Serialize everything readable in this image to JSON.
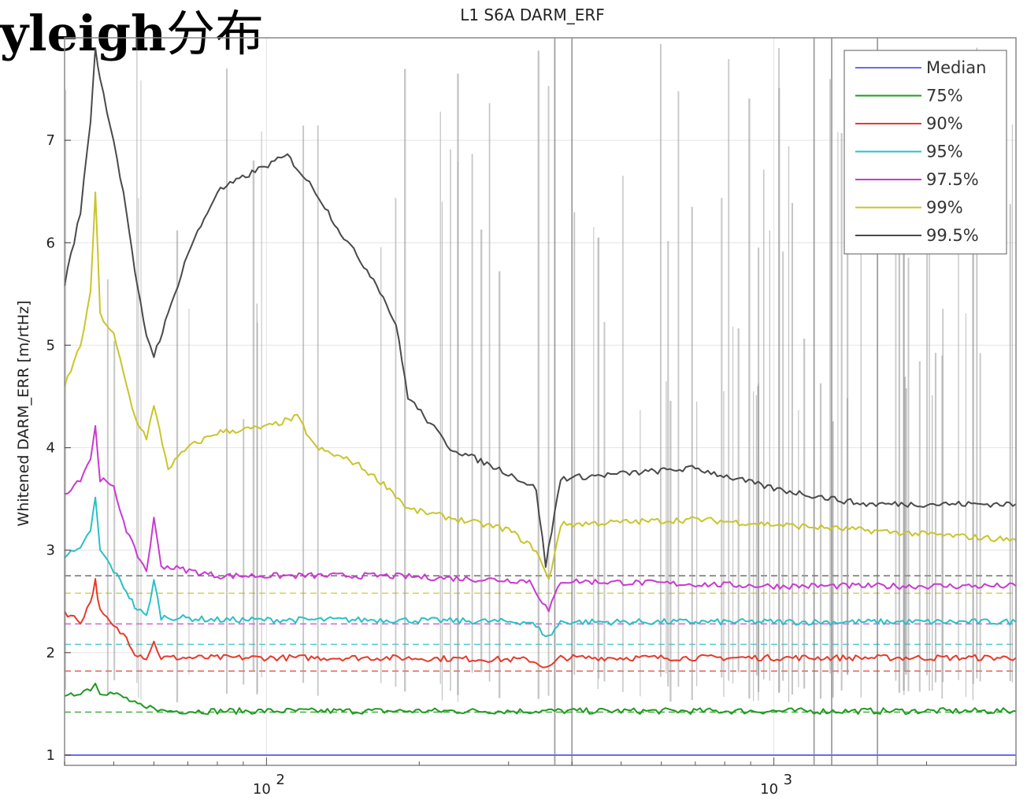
{
  "overlay_heading": {
    "latin": "yleigh",
    "cjk": "分布"
  },
  "chart_data": {
    "type": "line",
    "title": "L1 S6A DARM_ERF",
    "xlabel": "",
    "ylabel": "Whitened DARM_ERR [m/rtHz]",
    "xscale": "log",
    "xlim": [
      40,
      3000
    ],
    "ylim": [
      0.9,
      8.0
    ],
    "yticks": [
      1,
      2,
      3,
      4,
      5,
      6,
      7
    ],
    "xticks": [
      {
        "value": 100,
        "base": "10",
        "exp": "2"
      },
      {
        "value": 1000,
        "base": "10",
        "exp": "3"
      }
    ],
    "grid": true,
    "legend_position": "top-right",
    "series": [
      {
        "name": "Median",
        "color": "#6b6bf0",
        "points": [
          [
            40,
            1.0
          ],
          [
            3000,
            1.0
          ]
        ]
      },
      {
        "name": "75%",
        "color": "#1f9a1f",
        "reference": 1.42,
        "points": [
          [
            40,
            1.55
          ],
          [
            43,
            1.62
          ],
          [
            45,
            1.65
          ],
          [
            46,
            1.7
          ],
          [
            47,
            1.62
          ],
          [
            50,
            1.6
          ],
          [
            53,
            1.55
          ],
          [
            55,
            1.5
          ],
          [
            58,
            1.45
          ],
          [
            60,
            1.48
          ],
          [
            62,
            1.43
          ],
          [
            80,
            1.43
          ],
          [
            150,
            1.43
          ],
          [
            370,
            1.43
          ],
          [
            3000,
            1.43
          ]
        ]
      },
      {
        "name": "90%",
        "color": "#e63a2a",
        "reference": 1.82,
        "points": [
          [
            40,
            2.4
          ],
          [
            43,
            2.3
          ],
          [
            45,
            2.5
          ],
          [
            46,
            2.7
          ],
          [
            47,
            2.4
          ],
          [
            50,
            2.25
          ],
          [
            53,
            2.15
          ],
          [
            55,
            2.0
          ],
          [
            58,
            1.95
          ],
          [
            60,
            2.1
          ],
          [
            62,
            1.95
          ],
          [
            80,
            1.95
          ],
          [
            170,
            1.95
          ],
          [
            330,
            1.93
          ],
          [
            360,
            1.85
          ],
          [
            380,
            1.95
          ],
          [
            1000,
            1.95
          ],
          [
            3000,
            1.95
          ]
        ]
      },
      {
        "name": "95%",
        "color": "#2ac0c8",
        "reference": 2.08,
        "points": [
          [
            40,
            2.95
          ],
          [
            43,
            3.0
          ],
          [
            45,
            3.2
          ],
          [
            46,
            3.5
          ],
          [
            47,
            3.0
          ],
          [
            50,
            2.8
          ],
          [
            53,
            2.6
          ],
          [
            55,
            2.45
          ],
          [
            58,
            2.35
          ],
          [
            60,
            2.7
          ],
          [
            62,
            2.35
          ],
          [
            80,
            2.32
          ],
          [
            170,
            2.32
          ],
          [
            330,
            2.3
          ],
          [
            360,
            2.15
          ],
          [
            380,
            2.3
          ],
          [
            1000,
            2.3
          ],
          [
            3000,
            2.3
          ]
        ]
      },
      {
        "name": "97.5%",
        "color": "#c93ad0",
        "reference": 2.28,
        "points": [
          [
            40,
            3.55
          ],
          [
            43,
            3.7
          ],
          [
            45,
            3.9
          ],
          [
            46,
            4.2
          ],
          [
            47,
            3.7
          ],
          [
            50,
            3.6
          ],
          [
            53,
            3.2
          ],
          [
            55,
            3.0
          ],
          [
            58,
            2.8
          ],
          [
            60,
            3.3
          ],
          [
            62,
            2.85
          ],
          [
            80,
            2.75
          ],
          [
            170,
            2.75
          ],
          [
            330,
            2.7
          ],
          [
            360,
            2.4
          ],
          [
            380,
            2.7
          ],
          [
            1000,
            2.65
          ],
          [
            3000,
            2.65
          ]
        ]
      },
      {
        "name": "99%",
        "color": "#c9c52a",
        "reference": 2.58,
        "points": [
          [
            40,
            4.6
          ],
          [
            43,
            5.0
          ],
          [
            45,
            5.5
          ],
          [
            46,
            6.5
          ],
          [
            47,
            5.3
          ],
          [
            50,
            5.1
          ],
          [
            53,
            4.6
          ],
          [
            55,
            4.3
          ],
          [
            58,
            4.1
          ],
          [
            60,
            4.4
          ],
          [
            64,
            3.8
          ],
          [
            70,
            4.0
          ],
          [
            80,
            4.15
          ],
          [
            100,
            4.2
          ],
          [
            115,
            4.3
          ],
          [
            125,
            4.0
          ],
          [
            150,
            3.85
          ],
          [
            175,
            3.6
          ],
          [
            190,
            3.4
          ],
          [
            300,
            3.2
          ],
          [
            340,
            3.0
          ],
          [
            360,
            2.7
          ],
          [
            380,
            3.25
          ],
          [
            700,
            3.3
          ],
          [
            1000,
            3.25
          ],
          [
            3000,
            3.1
          ]
        ]
      },
      {
        "name": "99.5%",
        "color": "#4a4a4a",
        "reference": 2.75,
        "points": [
          [
            40,
            5.6
          ],
          [
            43,
            6.3
          ],
          [
            45,
            7.2
          ],
          [
            46,
            7.9
          ],
          [
            47,
            7.6
          ],
          [
            50,
            7.0
          ],
          [
            53,
            6.3
          ],
          [
            55,
            5.7
          ],
          [
            58,
            5.1
          ],
          [
            60,
            4.9
          ],
          [
            64,
            5.3
          ],
          [
            70,
            5.9
          ],
          [
            80,
            6.5
          ],
          [
            95,
            6.7
          ],
          [
            110,
            6.85
          ],
          [
            125,
            6.5
          ],
          [
            140,
            6.1
          ],
          [
            165,
            5.6
          ],
          [
            180,
            5.2
          ],
          [
            190,
            4.5
          ],
          [
            230,
            4.0
          ],
          [
            300,
            3.75
          ],
          [
            340,
            3.6
          ],
          [
            355,
            2.85
          ],
          [
            380,
            3.7
          ],
          [
            700,
            3.8
          ],
          [
            1000,
            3.6
          ],
          [
            1500,
            3.45
          ],
          [
            3000,
            3.45
          ]
        ]
      }
    ]
  }
}
